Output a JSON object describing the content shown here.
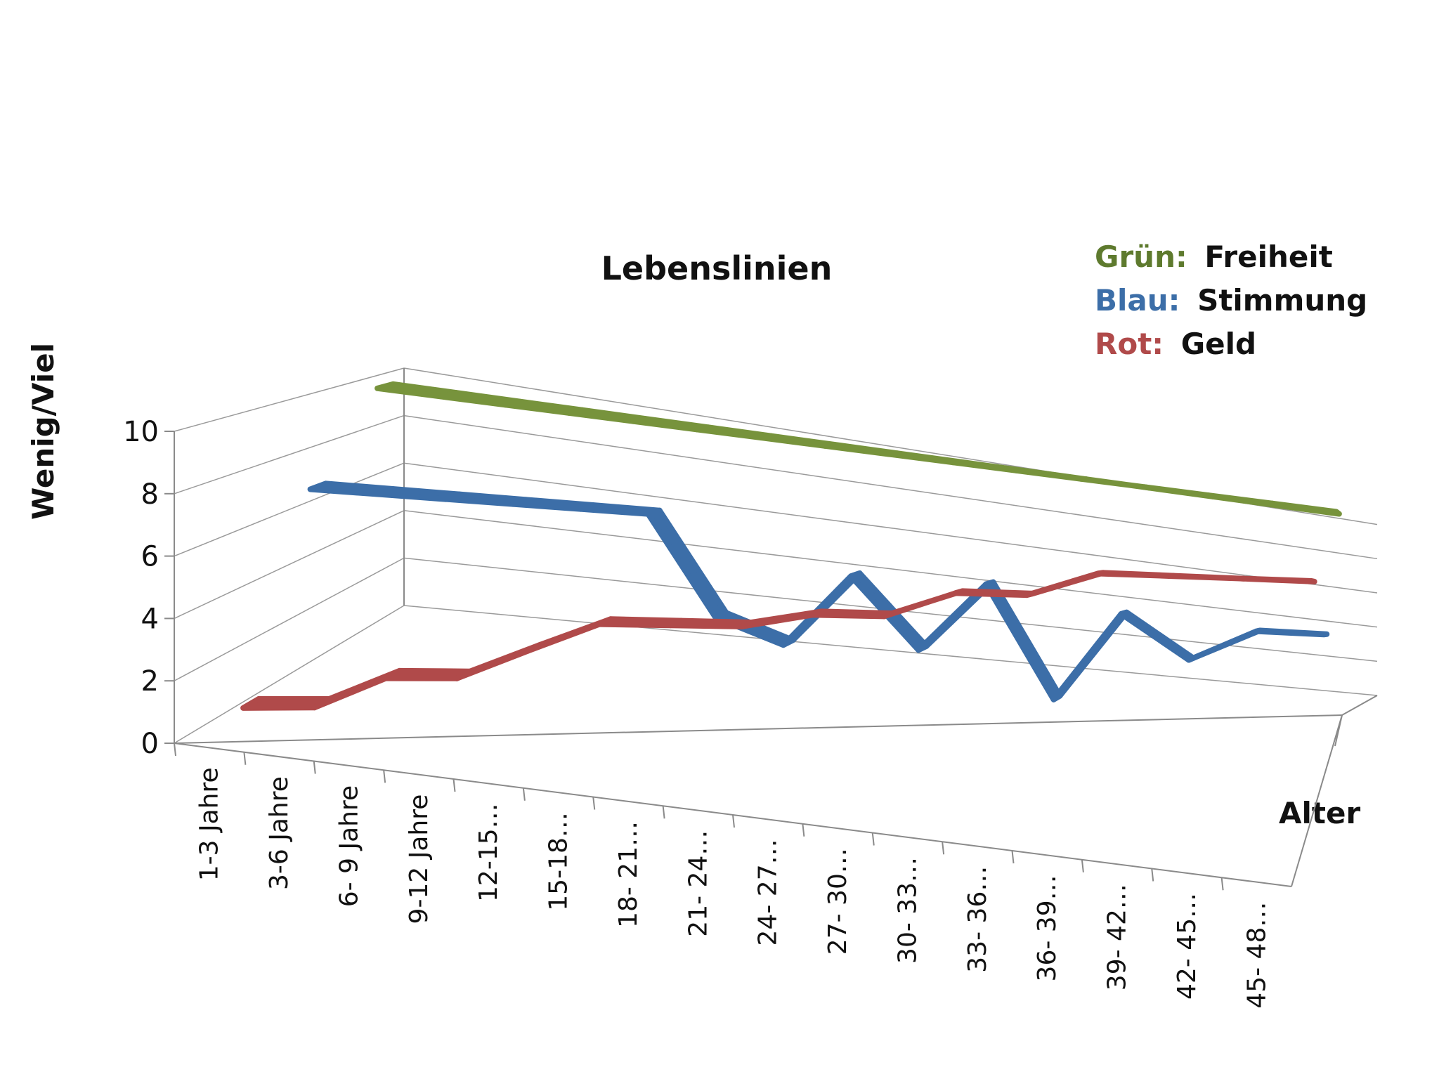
{
  "chart_data": {
    "type": "line",
    "title": "Lebenslinien",
    "xlabel": "Alter",
    "ylabel": "Wenig/Viel",
    "ylim": [
      0,
      10
    ],
    "yticks": [
      "0",
      "2",
      "4",
      "6",
      "8",
      "10"
    ],
    "categories": [
      "1-3 Jahre",
      "3-6 Jahre",
      "6- 9 Jahre",
      "9-12 Jahre",
      "12-15…",
      "15-18…",
      "18- 21…",
      "21- 24…",
      "24- 27…",
      "27- 30…",
      "30- 33…",
      "33- 36…",
      "36- 39…",
      "39- 42…",
      "42- 45…",
      "45- 48…"
    ],
    "grid": true,
    "series": [
      {
        "key": "gruen",
        "color": "#77933c",
        "depth": 2,
        "values": [
          10,
          10,
          10,
          10,
          10,
          10,
          10,
          10,
          10,
          10,
          10,
          10,
          10,
          10,
          10,
          10
        ]
      },
      {
        "key": "blau",
        "color": "#3c6ea8",
        "depth": 1,
        "values": [
          7,
          7,
          7,
          7,
          7,
          7,
          3,
          2,
          5,
          2,
          5,
          0,
          4,
          2,
          3.5,
          3.5
        ]
      },
      {
        "key": "rot",
        "color": "#b04a4a",
        "depth": 0,
        "values": [
          0.5,
          0.5,
          1.5,
          1.5,
          2.5,
          3.5,
          3.5,
          3.5,
          4,
          4,
          5,
          5,
          6,
          6,
          6,
          6
        ]
      }
    ]
  },
  "legend": {
    "position": "top-right",
    "items": [
      {
        "prefix": "Grün:",
        "label": "Freiheit",
        "color": "#5e7a2e"
      },
      {
        "prefix": "Blau:",
        "label": "Stimmung",
        "color": "#3c6ea8"
      },
      {
        "prefix": "Rot:",
        "label": "Geld",
        "color": "#b04a4a"
      }
    ]
  }
}
